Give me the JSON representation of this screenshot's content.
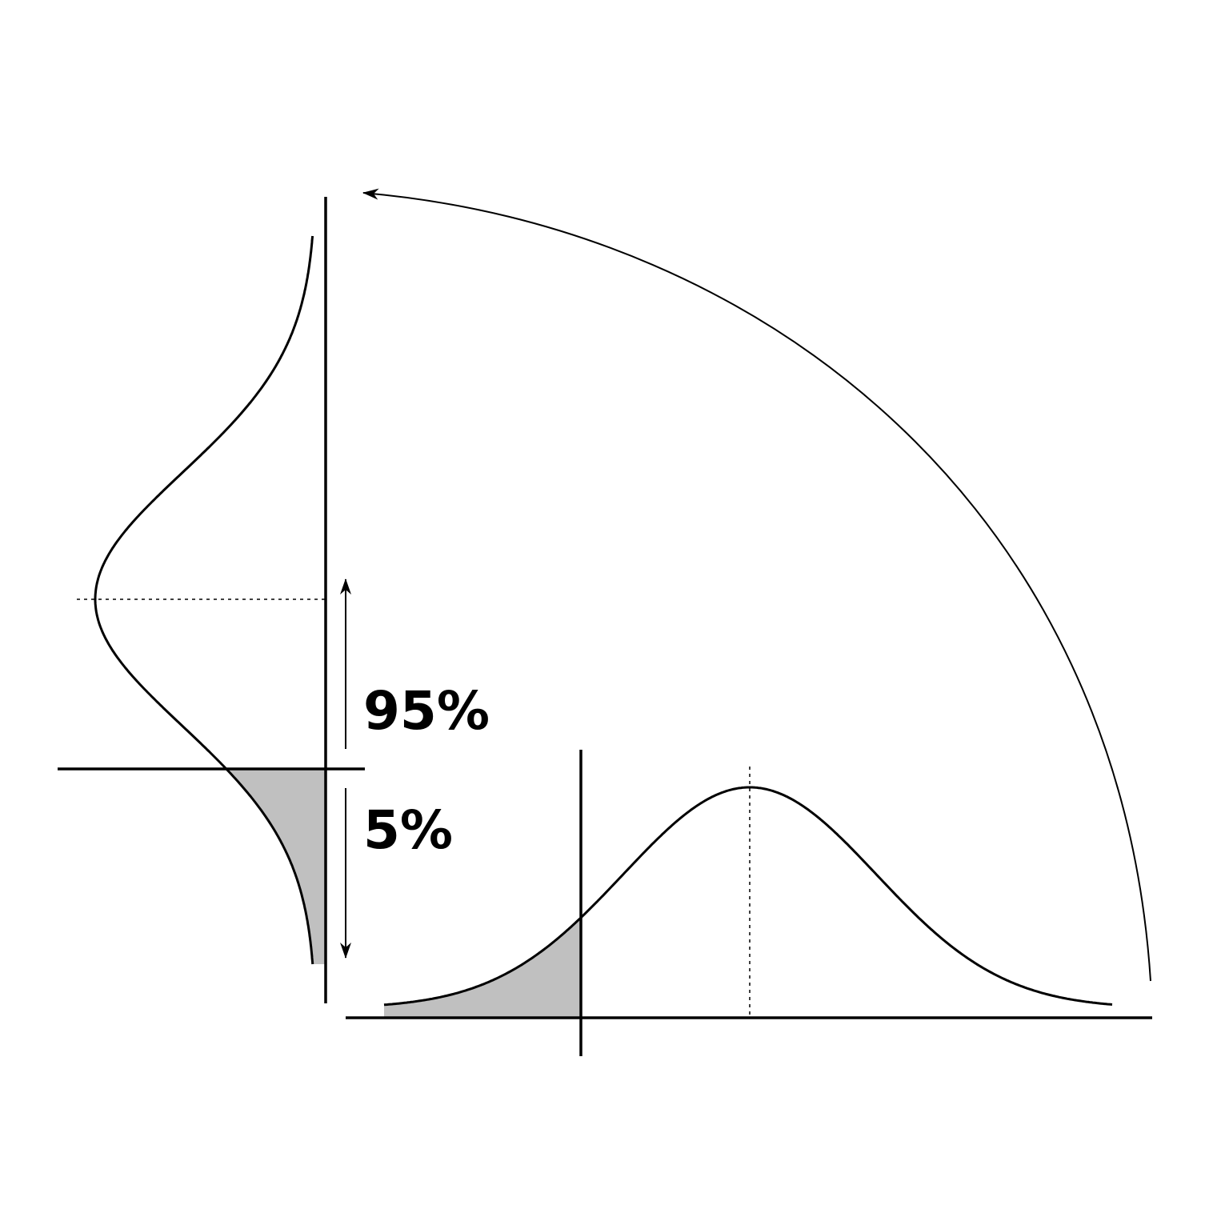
{
  "labels": {
    "upper_percent": "95%",
    "lower_percent": "5%"
  },
  "colors": {
    "ink": "#000000",
    "tail_fill": "#c0c0c0",
    "background": "#ffffff"
  },
  "icons": {
    "rotation_arrow": "curved-arrow-icon",
    "span_arrows": "double-arrow-icon"
  }
}
